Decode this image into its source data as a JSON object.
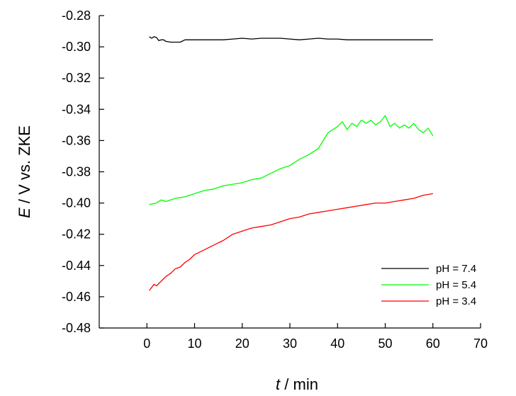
{
  "chart_data": {
    "type": "line",
    "xlabel": {
      "symbol": "t",
      "rest": " / min"
    },
    "ylabel": {
      "symbol": "E",
      "rest": " / V vs. ZKE"
    },
    "xlim": [
      -10,
      70
    ],
    "ylim": [
      -0.48,
      -0.28
    ],
    "xticks": [
      0,
      10,
      20,
      30,
      40,
      50,
      60,
      70
    ],
    "yticks": [
      -0.28,
      -0.3,
      -0.32,
      -0.34,
      -0.36,
      -0.38,
      -0.4,
      -0.42,
      -0.44,
      -0.46,
      -0.48
    ],
    "xtick_labels": [
      "0",
      "10",
      "20",
      "30",
      "40",
      "50",
      "60",
      "70"
    ],
    "ytick_labels": [
      "-0.28",
      "-0.30",
      "-0.32",
      "-0.34",
      "-0.36",
      "-0.38",
      "-0.40",
      "-0.42",
      "-0.44",
      "-0.46",
      "-0.48"
    ],
    "grid": false,
    "legend_position": "bottom-right",
    "series": [
      {
        "name": "pH = 7.4",
        "color": "#000000",
        "x": [
          0.5,
          1,
          1.5,
          2,
          2.5,
          3,
          3.5,
          4,
          5,
          6,
          7,
          8,
          10,
          12,
          14,
          16,
          18,
          20,
          22,
          24,
          26,
          28,
          30,
          32,
          34,
          36,
          38,
          40,
          42,
          44,
          46,
          48,
          50,
          52,
          54,
          56,
          58,
          60
        ],
        "y": [
          -0.2935,
          -0.2945,
          -0.2935,
          -0.294,
          -0.296,
          -0.2955,
          -0.2955,
          -0.2965,
          -0.297,
          -0.297,
          -0.297,
          -0.2955,
          -0.2955,
          -0.2955,
          -0.2955,
          -0.2955,
          -0.295,
          -0.2945,
          -0.295,
          -0.2945,
          -0.2945,
          -0.2945,
          -0.295,
          -0.2955,
          -0.295,
          -0.2945,
          -0.295,
          -0.295,
          -0.2955,
          -0.2955,
          -0.2955,
          -0.2955,
          -0.2955,
          -0.2955,
          -0.2955,
          -0.2955,
          -0.2955,
          -0.2955
        ]
      },
      {
        "name": "pH = 5.4",
        "color": "#00ff00",
        "x": [
          0.5,
          2,
          3,
          4,
          6,
          8,
          10,
          12,
          14,
          16,
          18,
          20,
          22,
          24,
          26,
          28,
          30,
          32,
          34,
          36,
          37,
          38,
          40,
          41,
          42,
          43,
          44,
          45,
          46,
          47,
          48,
          49,
          50,
          51,
          52,
          53,
          54,
          55,
          56,
          57,
          58,
          59,
          60
        ],
        "y": [
          -0.401,
          -0.4,
          -0.398,
          -0.399,
          -0.397,
          -0.396,
          -0.394,
          -0.392,
          -0.391,
          -0.389,
          -0.388,
          -0.387,
          -0.385,
          -0.384,
          -0.381,
          -0.378,
          -0.376,
          -0.372,
          -0.369,
          -0.365,
          -0.36,
          -0.355,
          -0.351,
          -0.348,
          -0.353,
          -0.349,
          -0.351,
          -0.347,
          -0.349,
          -0.347,
          -0.35,
          -0.348,
          -0.344,
          -0.351,
          -0.349,
          -0.352,
          -0.35,
          -0.352,
          -0.349,
          -0.353,
          -0.355,
          -0.352,
          -0.357
        ]
      },
      {
        "name": "pH = 3.4",
        "color": "#ff0000",
        "x": [
          0.5,
          1,
          1.5,
          2,
          3,
          4,
          5,
          6,
          7,
          8,
          9,
          10,
          12,
          14,
          16,
          18,
          20,
          22,
          24,
          26,
          28,
          30,
          32,
          34,
          36,
          38,
          40,
          42,
          44,
          46,
          48,
          50,
          52,
          54,
          56,
          58,
          60
        ],
        "y": [
          -0.456,
          -0.454,
          -0.452,
          -0.453,
          -0.45,
          -0.447,
          -0.445,
          -0.442,
          -0.441,
          -0.438,
          -0.436,
          -0.433,
          -0.43,
          -0.427,
          -0.424,
          -0.42,
          -0.418,
          -0.416,
          -0.415,
          -0.414,
          -0.412,
          -0.41,
          -0.409,
          -0.407,
          -0.406,
          -0.405,
          -0.404,
          -0.403,
          -0.402,
          -0.401,
          -0.4,
          -0.4,
          -0.399,
          -0.398,
          -0.397,
          -0.395,
          -0.394
        ]
      }
    ]
  }
}
